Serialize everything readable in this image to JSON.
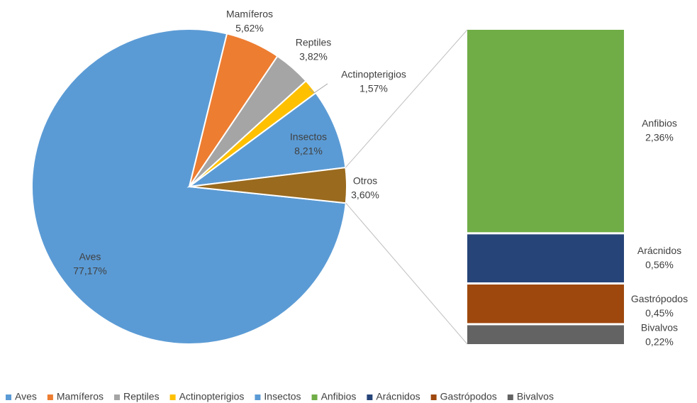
{
  "chart_data": {
    "type": "pie_of_bar",
    "pie": {
      "categories": [
        "Aves",
        "Mamíferos",
        "Reptiles",
        "Actinopterigios",
        "Insectos",
        "Otros"
      ],
      "values": [
        77.17,
        5.62,
        3.82,
        1.57,
        8.21,
        3.6
      ],
      "value_labels": [
        "77,17%",
        "5,62%",
        "3,82%",
        "1,57%",
        "8,21%",
        "3,60%"
      ],
      "colors": [
        "#5b9bd5",
        "#ed7d31",
        "#a5a5a5",
        "#ffc000",
        "#5b9bd5",
        "#9a6a1e"
      ]
    },
    "bar": {
      "categories": [
        "Anfibios",
        "Arácnidos",
        "Gastrópodos",
        "Bivalvos"
      ],
      "values": [
        2.36,
        0.56,
        0.45,
        0.22
      ],
      "value_labels": [
        "2,36%",
        "0,56%",
        "0,45%",
        "0,22%"
      ],
      "colors": [
        "#70ad47",
        "#264478",
        "#9e480e",
        "#636363"
      ]
    },
    "legend": "bottom"
  }
}
